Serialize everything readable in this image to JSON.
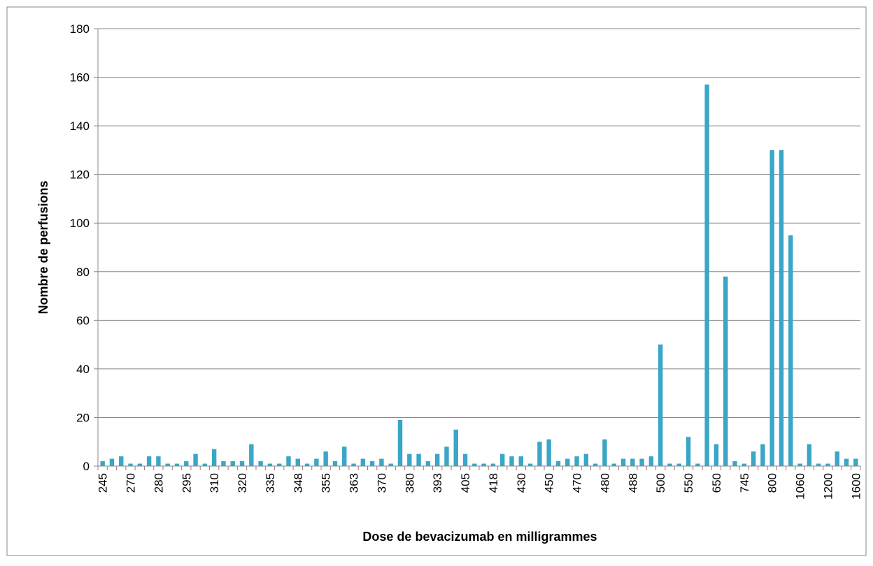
{
  "chart_data": {
    "type": "bar",
    "xlabel": "Dose de bevacizumab en milligrammes",
    "ylabel": "Nombre de perfusions",
    "categories": [
      "245",
      null,
      null,
      "270",
      null,
      null,
      "280",
      null,
      null,
      "295",
      null,
      null,
      "310",
      null,
      null,
      "320",
      null,
      null,
      "335",
      null,
      null,
      "348",
      null,
      null,
      "355",
      null,
      null,
      "363",
      null,
      null,
      "370",
      null,
      null,
      "380",
      null,
      null,
      "393",
      null,
      null,
      "405",
      null,
      null,
      "418",
      null,
      null,
      "430",
      null,
      null,
      "450",
      null,
      null,
      "470",
      null,
      null,
      "480",
      null,
      null,
      "488",
      null,
      null,
      "500",
      null,
      null,
      "550",
      null,
      null,
      "650",
      null,
      null,
      "745",
      null,
      null,
      "800",
      null,
      null,
      "1060",
      null,
      null,
      "1200",
      null,
      null,
      "1600"
    ],
    "values": [
      2,
      3,
      4,
      1,
      1,
      4,
      4,
      1,
      1,
      2,
      5,
      1,
      7,
      2,
      2,
      2,
      9,
      2,
      1,
      1,
      4,
      3,
      1,
      3,
      6,
      2,
      8,
      1,
      3,
      2,
      3,
      1,
      19,
      5,
      5,
      2,
      5,
      8,
      15,
      5,
      1,
      1,
      1,
      5,
      4,
      4,
      1,
      10,
      11,
      2,
      3,
      4,
      5,
      1,
      11,
      1,
      3,
      3,
      3,
      4,
      50,
      1,
      1,
      12,
      1,
      157,
      9,
      78,
      2,
      1,
      6,
      9,
      130,
      130,
      95,
      1,
      9,
      1,
      1,
      6,
      3,
      3
    ],
    "color": "#3aa6c8",
    "ylim": [
      0,
      180
    ],
    "yticks": [
      0,
      20,
      40,
      60,
      80,
      100,
      120,
      140,
      160,
      180
    ],
    "grid": true
  }
}
